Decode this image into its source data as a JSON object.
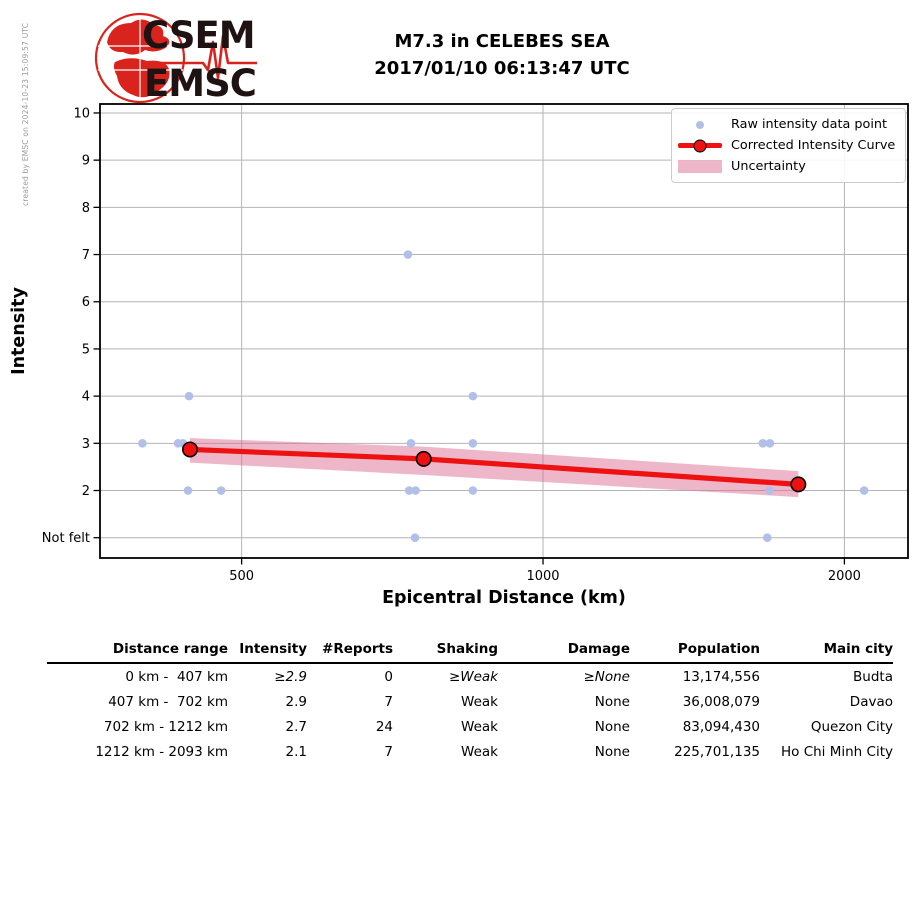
{
  "watermark": {
    "text": "created by EMSC on 2024-10-23 15:09:57 UTC"
  },
  "logo": {
    "line1": "CSEM",
    "line2": "EMSC"
  },
  "chart_data": {
    "type": "scatter",
    "title": "M7.3 in CELEBES SEA",
    "subtitle": "2017/01/10 06:13:47 UTC",
    "xlabel": "Epicentral Distance (km)",
    "ylabel": "Intensity",
    "x_scale": "log",
    "xlim": [
      361,
      2315
    ],
    "ylim": [
      0.57,
      10.19
    ],
    "x_ticks": [
      {
        "value": 500,
        "label": "500"
      },
      {
        "value": 1000,
        "label": "1000"
      },
      {
        "value": 2000,
        "label": "2000"
      }
    ],
    "y_ticks": [
      {
        "value": 10,
        "label": "10"
      },
      {
        "value": 9,
        "label": "9"
      },
      {
        "value": 8,
        "label": "8"
      },
      {
        "value": 7,
        "label": "7"
      },
      {
        "value": 6,
        "label": "6"
      },
      {
        "value": 5,
        "label": "5"
      },
      {
        "value": 4,
        "label": "4"
      },
      {
        "value": 3,
        "label": "3"
      },
      {
        "value": 2,
        "label": "2"
      },
      {
        "value": 1,
        "label": "Not felt"
      }
    ],
    "grid": true,
    "legend_position": "upper right",
    "legend": [
      {
        "marker": "raw-point-dot",
        "label": "Raw intensity data point"
      },
      {
        "marker": "curve-line-with-marker",
        "label": "Corrected Intensity Curve"
      },
      {
        "marker": "uncertainty-band-swatch",
        "label": "Uncertainty"
      }
    ],
    "raw_points": [
      {
        "d": 398,
        "i": 3
      },
      {
        "d": 432,
        "i": 3
      },
      {
        "d": 437,
        "i": 3
      },
      {
        "d": 443,
        "i": 4
      },
      {
        "d": 442,
        "i": 2
      },
      {
        "d": 477,
        "i": 2
      },
      {
        "d": 733,
        "i": 7
      },
      {
        "d": 738,
        "i": 3
      },
      {
        "d": 735,
        "i": 2
      },
      {
        "d": 746,
        "i": 2
      },
      {
        "d": 745,
        "i": 1
      },
      {
        "d": 851,
        "i": 4
      },
      {
        "d": 851,
        "i": 3
      },
      {
        "d": 851,
        "i": 2
      },
      {
        "d": 1658,
        "i": 3
      },
      {
        "d": 1685,
        "i": 3
      },
      {
        "d": 1683,
        "i": 2
      },
      {
        "d": 1675,
        "i": 1
      },
      {
        "d": 2093,
        "i": 2
      }
    ],
    "corrected_curve": [
      {
        "d": 444,
        "i": 2.87
      },
      {
        "d": 760,
        "i": 2.67
      },
      {
        "d": 1799,
        "i": 2.13
      }
    ],
    "uncertainty_band": {
      "upper": [
        {
          "d": 444,
          "i": 3.11
        },
        {
          "d": 760,
          "i": 2.93
        },
        {
          "d": 1799,
          "i": 2.41
        }
      ],
      "lower": [
        {
          "d": 444,
          "i": 2.59
        },
        {
          "d": 760,
          "i": 2.33
        },
        {
          "d": 1799,
          "i": 1.86
        }
      ]
    },
    "colors": {
      "raw_point": "#b1bfe9",
      "curve": "#ee1111",
      "band": "rgba(219,112,147,0.5)",
      "grid": "#b4b4b4",
      "frame": "#000000",
      "logo_red": "#d8241c",
      "logo_text": "#1f1212"
    }
  },
  "table": {
    "headers": [
      "Distance range",
      "Intensity",
      "#Reports",
      "Shaking",
      "Damage",
      "Population",
      "Main city"
    ],
    "rows": [
      [
        "0 km -  407 km",
        "≥2.9",
        "0",
        "≥Weak",
        "≥None",
        "13,174,556",
        "Budta"
      ],
      [
        "407 km -  702 km",
        "2.9",
        "7",
        "Weak",
        "None",
        "36,008,079",
        "Davao"
      ],
      [
        "702 km - 1212 km",
        "2.7",
        "24",
        "Weak",
        "None",
        "83,094,430",
        "Quezon City"
      ],
      [
        "1212 km - 2093 km",
        "2.1",
        "7",
        "Weak",
        "None",
        "225,701,135",
        "Ho Chi Minh City"
      ]
    ],
    "italic_first_row": true
  }
}
